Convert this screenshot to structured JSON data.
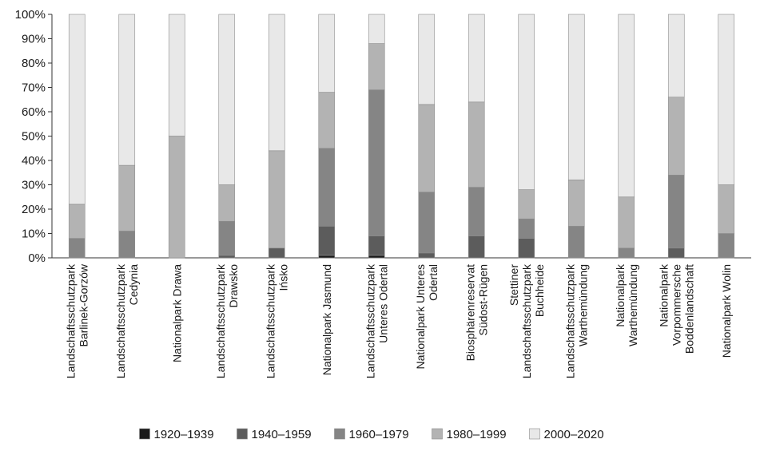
{
  "chart_data": {
    "type": "bar",
    "stacked": true,
    "percent": true,
    "categories": [
      [
        "Landschaftsschutzpark",
        "Barlinek-Gorzów"
      ],
      [
        "Landschaftsschutzpark",
        "Cedynia"
      ],
      [
        "Nationalpark Drawa"
      ],
      [
        "Landschaftsschutzpark",
        "Drawsko"
      ],
      [
        "Landschaftsschutzpark",
        "Ińsko"
      ],
      [
        "Nationalpark Jasmund"
      ],
      [
        "Landschaftsschutzpark",
        "Unteres Odertal"
      ],
      [
        "Nationalpark Unteres",
        "Odertal"
      ],
      [
        "Biosphärenreservat",
        "Südost-Rügen"
      ],
      [
        "Stettiner",
        "Landschaftsschutzpark",
        "Buchheide"
      ],
      [
        "Landschaftsschutzpark",
        "Warthemündung"
      ],
      [
        "Nationalpark",
        "Warthemündung"
      ],
      [
        "Nationalpark",
        "Vorpommersche",
        "Boddenlandschaft"
      ],
      [
        "Nationalpark Wolin"
      ]
    ],
    "series": [
      {
        "name": "1920–1939",
        "color": "#1a1a1a",
        "values": [
          0,
          0,
          0,
          0,
          0,
          1,
          1,
          0,
          0,
          0,
          0,
          0,
          0,
          0
        ]
      },
      {
        "name": "1940–1959",
        "color": "#5c5c5c",
        "values": [
          0,
          0,
          0,
          1,
          4,
          12,
          8,
          2,
          9,
          8,
          0,
          0,
          4,
          0
        ]
      },
      {
        "name": "1960–1979",
        "color": "#858585",
        "values": [
          8,
          11,
          0,
          14,
          0,
          32,
          60,
          25,
          20,
          8,
          13,
          4,
          30,
          10
        ]
      },
      {
        "name": "1980–1999",
        "color": "#b3b3b3",
        "values": [
          14,
          27,
          50,
          15,
          40,
          23,
          19,
          36,
          35,
          12,
          19,
          21,
          32,
          20
        ]
      },
      {
        "name": "2000–2020",
        "color": "#e8e8e8",
        "values": [
          78,
          62,
          50,
          70,
          56,
          32,
          12,
          37,
          36,
          72,
          68,
          75,
          34,
          70
        ]
      }
    ],
    "yticks": [
      "0%",
      "10%",
      "20%",
      "30%",
      "40%",
      "50%",
      "60%",
      "70%",
      "80%",
      "90%",
      "100%"
    ],
    "ylim": [
      0,
      100
    ],
    "grid": false,
    "legend_position": "bottom"
  }
}
